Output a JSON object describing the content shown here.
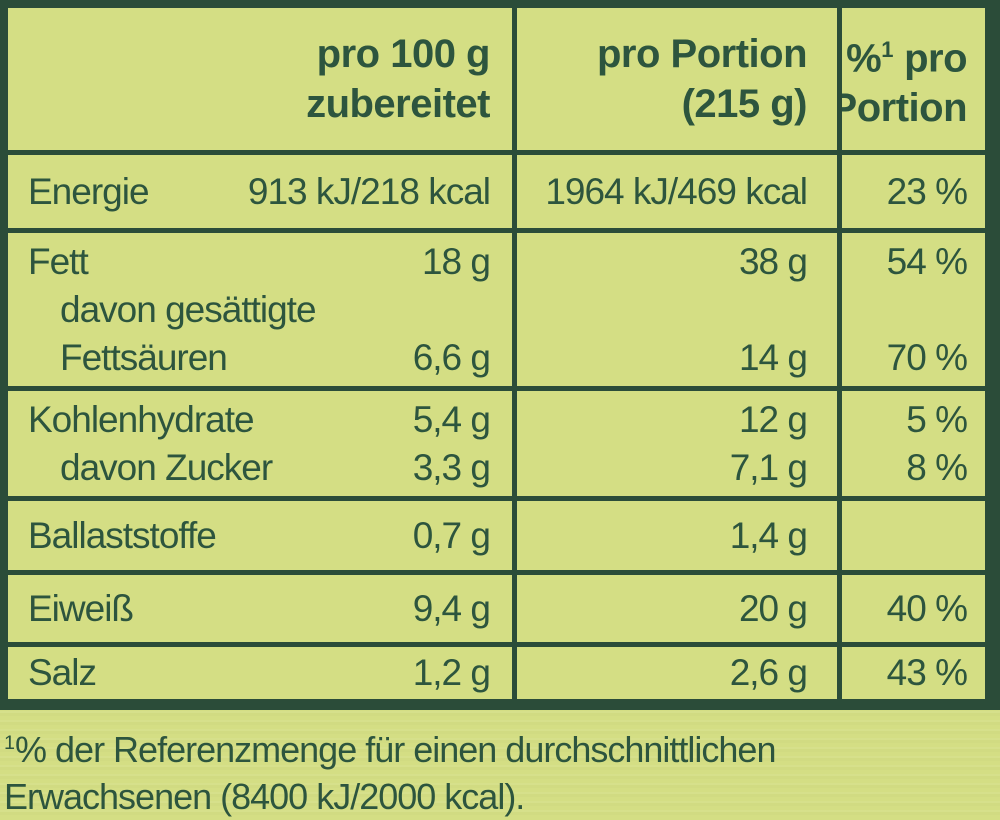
{
  "colors": {
    "background": "#d4de84",
    "line": "#2b4c39",
    "text": "#2d553e"
  },
  "header": {
    "col1_line1": "pro 100 g",
    "col1_line2": "zubereitet",
    "col2_line1": "pro Portion",
    "col2_line2": "(215 g)",
    "col3_pct": "%",
    "col3_sup": "1",
    "col3_line1_rest": " pro",
    "col3_line2": "Portion"
  },
  "rows": [
    {
      "lines": [
        {
          "label": "Energie",
          "v100": "913 kJ/218 kcal",
          "vp": "1964 kJ/469 kcal",
          "pct": "23 %"
        }
      ]
    },
    {
      "lines": [
        {
          "label": "Fett",
          "v100": "18 g",
          "vp": "38 g",
          "pct": "54 %"
        },
        {
          "label": "davon gesättigte",
          "v100": "",
          "vp": "",
          "pct": ""
        },
        {
          "label": "Fettsäuren",
          "v100": "6,6 g",
          "vp": "14 g",
          "pct": "70 %"
        }
      ]
    },
    {
      "lines": [
        {
          "label": "Kohlenhydrate",
          "v100": "5,4 g",
          "vp": "12 g",
          "pct": "5 %"
        },
        {
          "label": "davon Zucker",
          "v100": "3,3 g",
          "vp": "7,1 g",
          "pct": "8 %"
        }
      ]
    },
    {
      "lines": [
        {
          "label": "Ballaststoffe",
          "v100": "0,7 g",
          "vp": "1,4 g",
          "pct": ""
        }
      ]
    },
    {
      "lines": [
        {
          "label": "Eiweiß",
          "v100": "9,4 g",
          "vp": "20 g",
          "pct": "40 %"
        }
      ]
    },
    {
      "lines": [
        {
          "label": "Salz",
          "v100": "1,2 g",
          "vp": "2,6 g",
          "pct": "43 %"
        }
      ]
    }
  ],
  "footnote": {
    "sup": "1",
    "line1": "% der Referenzmenge für einen durchschnittlichen",
    "line2": "Erwachsenen (8400 kJ/2000 kcal)."
  }
}
